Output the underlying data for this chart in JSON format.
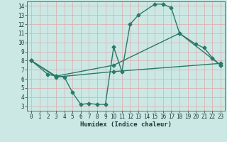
{
  "xlabel": "Humidex (Indice chaleur)",
  "bg_color": "#cce8e4",
  "grid_color": "#ddaaaa",
  "line_color": "#2a7a6a",
  "xlim": [
    -0.5,
    23.5
  ],
  "ylim": [
    2.5,
    14.5
  ],
  "xticks": [
    0,
    1,
    2,
    3,
    4,
    5,
    6,
    7,
    8,
    9,
    10,
    11,
    12,
    13,
    14,
    15,
    16,
    17,
    18,
    19,
    20,
    21,
    22,
    23
  ],
  "yticks": [
    3,
    4,
    5,
    6,
    7,
    8,
    9,
    10,
    11,
    12,
    13,
    14
  ],
  "line1_x": [
    0,
    2,
    3,
    4,
    5,
    6,
    7,
    8,
    9,
    10,
    11,
    12,
    13,
    15,
    16,
    17,
    18,
    20,
    21,
    22,
    23
  ],
  "line1_y": [
    8.0,
    6.5,
    6.3,
    6.2,
    4.5,
    3.2,
    3.3,
    3.2,
    3.2,
    9.5,
    6.8,
    12.0,
    13.0,
    14.2,
    14.2,
    13.8,
    11.0,
    9.8,
    9.4,
    8.3,
    7.5
  ],
  "line2_x": [
    0,
    3,
    10,
    18,
    23
  ],
  "line2_y": [
    8.0,
    6.3,
    7.5,
    11.0,
    7.5
  ],
  "line3_x": [
    0,
    3,
    10,
    23
  ],
  "line3_y": [
    8.0,
    6.2,
    6.8,
    7.7
  ]
}
